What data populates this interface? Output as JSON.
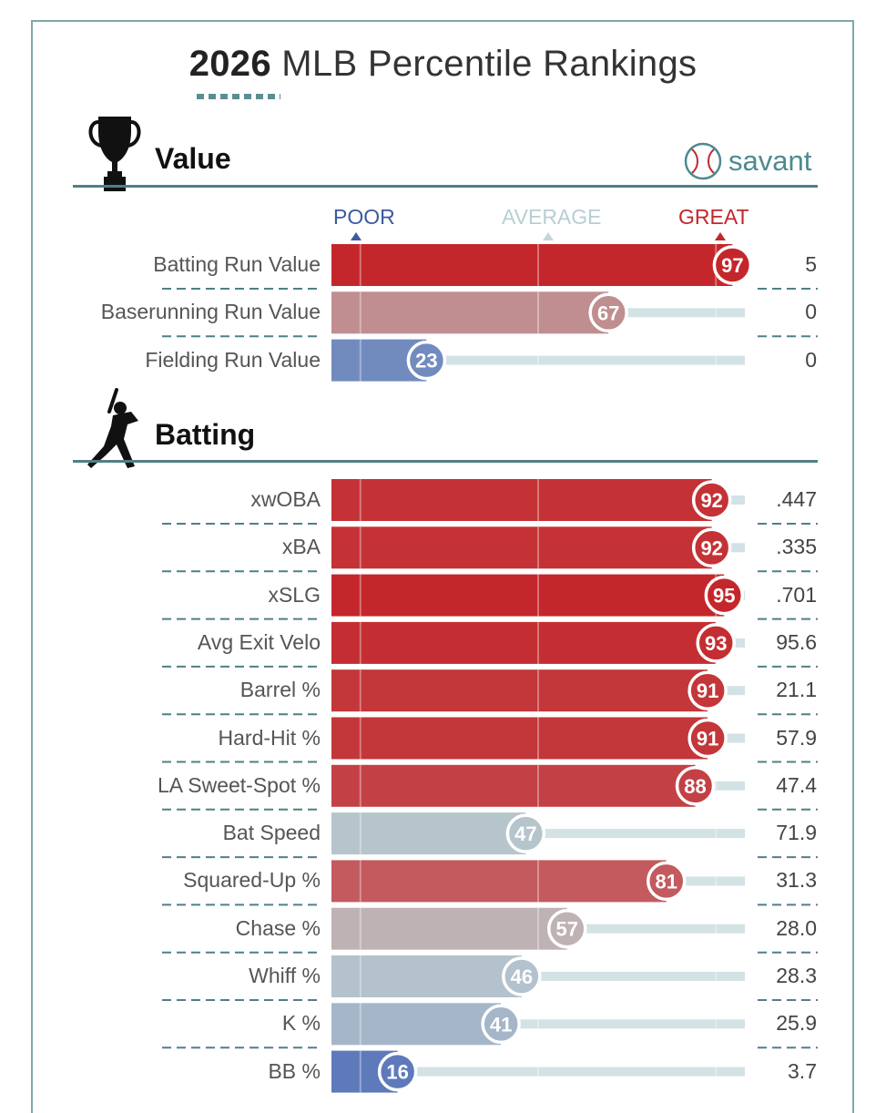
{
  "header": {
    "year": "2026",
    "title_rest": "MLB Percentile Rankings",
    "brand": "savant"
  },
  "scale": {
    "poor": "POOR",
    "average": "AVERAGE",
    "great": "GREAT"
  },
  "colors": {
    "frame": "#7fa8ab",
    "accent": "#4f8085",
    "track": "#d3e2e4"
  },
  "chart_data": {
    "type": "bar",
    "title": "2026 MLB Percentile Rankings",
    "xlim": [
      0,
      100
    ],
    "sections": [
      {
        "name": "Value",
        "metrics": [
          {
            "label": "Batting Run Value",
            "percentile": 97,
            "value": "5"
          },
          {
            "label": "Baserunning Run Value",
            "percentile": 67,
            "value": "0"
          },
          {
            "label": "Fielding Run Value",
            "percentile": 23,
            "value": "0"
          }
        ]
      },
      {
        "name": "Batting",
        "metrics": [
          {
            "label": "xwOBA",
            "percentile": 92,
            "value": ".447"
          },
          {
            "label": "xBA",
            "percentile": 92,
            "value": ".335"
          },
          {
            "label": "xSLG",
            "percentile": 95,
            "value": ".701"
          },
          {
            "label": "Avg Exit Velo",
            "percentile": 93,
            "value": "95.6"
          },
          {
            "label": "Barrel %",
            "percentile": 91,
            "value": "21.1"
          },
          {
            "label": "Hard-Hit %",
            "percentile": 91,
            "value": "57.9"
          },
          {
            "label": "LA Sweet-Spot %",
            "percentile": 88,
            "value": "47.4"
          },
          {
            "label": "Bat Speed",
            "percentile": 47,
            "value": "71.9"
          },
          {
            "label": "Squared-Up %",
            "percentile": 81,
            "value": "31.3"
          },
          {
            "label": "Chase %",
            "percentile": 57,
            "value": "28.0"
          },
          {
            "label": "Whiff %",
            "percentile": 46,
            "value": "28.3"
          },
          {
            "label": "K %",
            "percentile": 41,
            "value": "25.9"
          },
          {
            "label": "BB %",
            "percentile": 16,
            "value": "3.7"
          }
        ]
      }
    ]
  }
}
